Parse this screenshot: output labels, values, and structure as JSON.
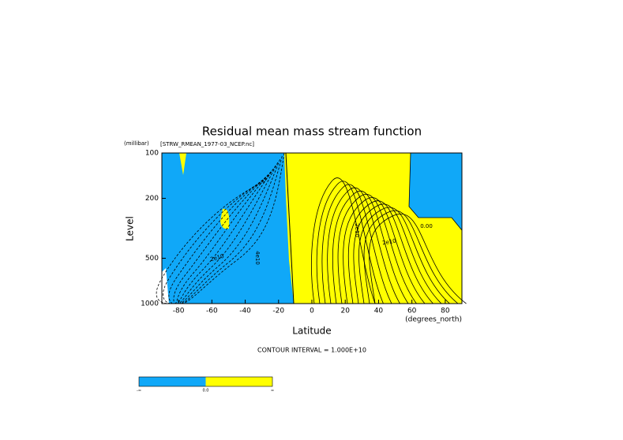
{
  "chart_data": {
    "type": "contour",
    "title": "Residual mean mass stream function",
    "subtitle": "[STRW_RMEAN_1977-03_NCEP.nc]",
    "y_unit": "(millibar)",
    "y_label": "Level",
    "x_label": "Latitude",
    "x_unit": "(degrees_north)",
    "note": "CONTOUR INTERVAL = 1.000E+10",
    "xlim": [
      -90,
      90
    ],
    "xticks": [
      -80,
      -60,
      -40,
      -20,
      0,
      20,
      40,
      60,
      80
    ],
    "ylim": [
      1000,
      100
    ],
    "yticks": [
      100,
      200,
      500,
      1000
    ],
    "ylog": true,
    "negative_color": "#10a8f8",
    "positive_color": "#ffff00",
    "contour_labels": [
      "2e10",
      "4e10",
      "2e10",
      "2e10",
      "0.00"
    ],
    "colorbar_labels": [
      "-∞",
      "0.0",
      "∞"
    ]
  }
}
